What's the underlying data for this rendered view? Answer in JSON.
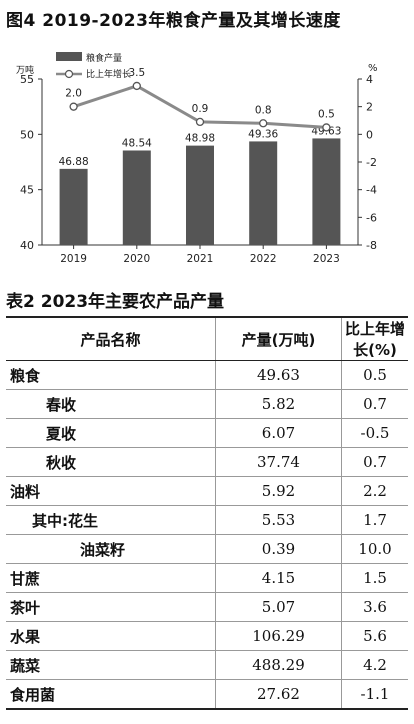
{
  "figure_title": "图4 2019-2023年粮食产量及其增长速度",
  "chart_data": {
    "type": "bar+line",
    "categories": [
      "2019",
      "2020",
      "2021",
      "2022",
      "2023"
    ],
    "series": [
      {
        "name": "粮食产量",
        "type": "bar",
        "axis": "left",
        "values": [
          46.88,
          48.54,
          48.98,
          49.36,
          49.63
        ]
      },
      {
        "name": "比上年增长",
        "type": "line",
        "axis": "right",
        "values": [
          2.0,
          3.5,
          0.9,
          0.8,
          0.5
        ]
      }
    ],
    "ylabel_left": "万吨",
    "ylabel_right": "%",
    "ylim_left": [
      40,
      55
    ],
    "yticks_left": [
      40,
      45,
      50,
      55
    ],
    "ylim_right": [
      -8,
      4
    ],
    "yticks_right": [
      4,
      2,
      0,
      -2,
      -4,
      -6,
      -8
    ],
    "bar_labels": [
      "46.88",
      "48.54",
      "48.98",
      "49.36",
      "49.63"
    ],
    "line_labels": [
      "2.0",
      "3.5",
      "0.9",
      "0.8",
      "0.5"
    ],
    "legend_position": "top-left",
    "colors": {
      "bar": "#555555",
      "line": "#8a8a8a",
      "marker_fill": "#ffffff"
    }
  },
  "table": {
    "title": "表2 2023年主要农产品产量",
    "headers": [
      "产品名称",
      "产量(万吨)",
      "比上年增长(%)"
    ],
    "rows": [
      {
        "name": "粮食",
        "indent": 0,
        "output": "49.63",
        "growth": "0.5"
      },
      {
        "name": "春收",
        "indent": 1,
        "output": "5.82",
        "growth": "0.7"
      },
      {
        "name": "夏收",
        "indent": 1,
        "output": "6.07",
        "growth": "-0.5"
      },
      {
        "name": "秋收",
        "indent": 1,
        "output": "37.74",
        "growth": "0.7"
      },
      {
        "name": "油料",
        "indent": 0,
        "output": "5.92",
        "growth": "2.2"
      },
      {
        "name": "其中:花生",
        "indent": 2,
        "output": "5.53",
        "growth": "1.7"
      },
      {
        "name": "油菜籽",
        "indent": 3,
        "output": "0.39",
        "growth": "10.0"
      },
      {
        "name": "甘蔗",
        "indent": 0,
        "output": "4.15",
        "growth": "1.5"
      },
      {
        "name": "茶叶",
        "indent": 0,
        "output": "5.07",
        "growth": "3.6"
      },
      {
        "name": "水果",
        "indent": 0,
        "output": "106.29",
        "growth": "5.6"
      },
      {
        "name": "蔬菜",
        "indent": 0,
        "output": "488.29",
        "growth": "4.2"
      },
      {
        "name": "食用菌",
        "indent": 0,
        "output": "27.62",
        "growth": "-1.1"
      }
    ]
  }
}
